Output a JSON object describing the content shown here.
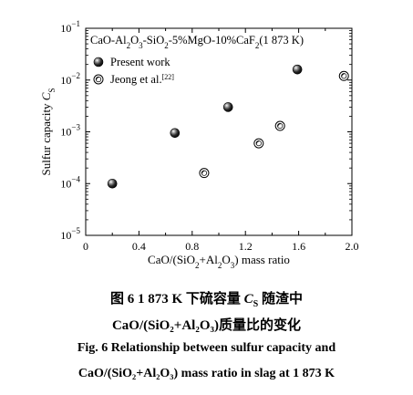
{
  "chart_data": {
    "type": "scatter",
    "inset_title": {
      "parts": [
        {
          "t": "CaO-Al"
        },
        {
          "t": "2",
          "sub": true
        },
        {
          "t": "O"
        },
        {
          "t": "3",
          "sub": true
        },
        {
          "t": "-SiO"
        },
        {
          "t": "2",
          "sub": true
        },
        {
          "t": "-5%MgO-10%CaF"
        },
        {
          "t": "2",
          "sub": true
        },
        {
          "t": "(1 873 K)"
        }
      ]
    },
    "ylabel": {
      "main": "Sulfur capacity ",
      "symbol": "C",
      "subscript": "S"
    },
    "xlabel": {
      "parts": [
        {
          "t": "CaO/(SiO"
        },
        {
          "t": "2",
          "sub": true
        },
        {
          "t": "+Al"
        },
        {
          "t": "2",
          "sub": true
        },
        {
          "t": "O"
        },
        {
          "t": "3",
          "sub": true
        },
        {
          "t": ") mass ratio"
        }
      ]
    },
    "xlim": [
      0,
      2.0
    ],
    "ylim_log10": [
      -5,
      -1
    ],
    "y_scale": "log",
    "x_ticks": [
      "0",
      "0.4",
      "0.8",
      "1.2",
      "1.6",
      "2.0"
    ],
    "x_tick_values": [
      0,
      0.4,
      0.8,
      1.2,
      1.6,
      2.0
    ],
    "y_tick_exponents": [
      -1,
      -2,
      -3,
      -4,
      -5
    ],
    "y_tick_base": "10",
    "legend_position": "top-left",
    "series": [
      {
        "name": "Present work",
        "marker": "filled-sphere",
        "points": [
          {
            "x": 0.2,
            "y": 0.0001
          },
          {
            "x": 0.67,
            "y": 0.00095
          },
          {
            "x": 1.07,
            "y": 0.003
          },
          {
            "x": 1.59,
            "y": 0.016
          }
        ]
      },
      {
        "name": "Jeong et al.",
        "name_superscript": "[22]",
        "marker": "open-circle",
        "points": [
          {
            "x": 0.89,
            "y": 0.00016
          },
          {
            "x": 1.3,
            "y": 0.0006
          },
          {
            "x": 1.46,
            "y": 0.0013
          },
          {
            "x": 1.94,
            "y": 0.012
          }
        ]
      }
    ]
  },
  "caption": {
    "cn_line1": "图 6   1 873 K 下硫容量 ",
    "cn_symbol": "C",
    "cn_symbol_sub": "S",
    "cn_line1_tail": " 随渣中",
    "cn_line2": "CaO/(SiO₂+Al₂O₃)质量比的变化",
    "en_line1": "Fig. 6    Relationship between sulfur capacity and",
    "en_line2": "CaO/(SiO₂+Al₂O₃) mass ratio in slag at 1 873 K"
  }
}
